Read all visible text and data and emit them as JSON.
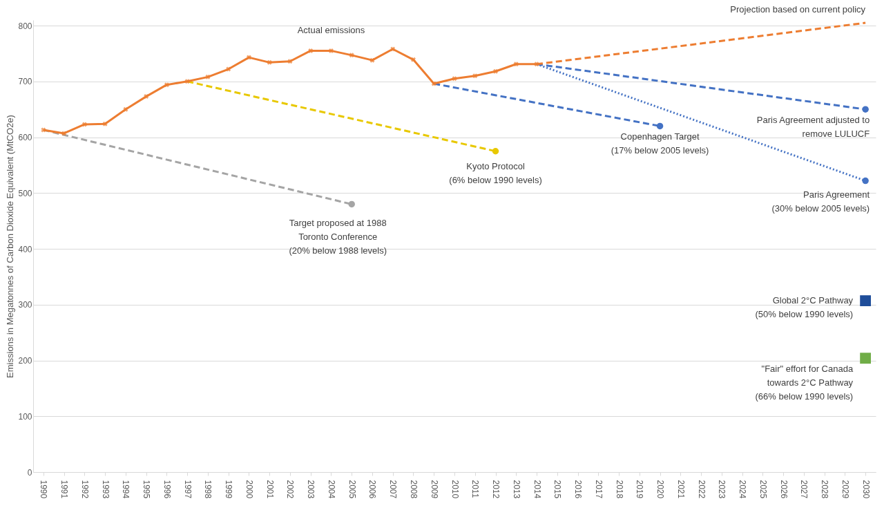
{
  "chart_data": {
    "type": "line",
    "ylabel": "Emissions in Megatonnes of Carbon Dioxide Equivalent (MtCO2e)",
    "xlim": [
      1989.5,
      2030.5
    ],
    "xticks": [
      1990,
      1991,
      1992,
      1993,
      1994,
      1995,
      1996,
      1997,
      1998,
      1999,
      2000,
      2001,
      2002,
      2003,
      2004,
      2005,
      2006,
      2007,
      2008,
      2009,
      2010,
      2011,
      2012,
      2013,
      2014,
      2015,
      2016,
      2017,
      2018,
      2019,
      2020,
      2021,
      2022,
      2023,
      2024,
      2025,
      2026,
      2027,
      2028,
      2029,
      2030
    ],
    "ylim": [
      0,
      810
    ],
    "yticks": [
      0,
      100,
      200,
      300,
      400,
      500,
      600,
      700,
      800
    ],
    "grid": "y",
    "series": [
      {
        "color": "#a5a5a5",
        "line_style": "dashed",
        "x": [
          1990,
          2005
        ],
        "values": [
          613,
          480
        ]
      },
      {
        "color": "#e8c800",
        "line_style": "dashed",
        "x": [
          1997,
          2012
        ],
        "values": [
          700,
          575
        ]
      },
      {
        "color": "#4472c4",
        "line_style": "dashed",
        "x": [
          2009,
          2020
        ],
        "values": [
          696,
          620
        ]
      },
      {
        "color": "#4472c4",
        "line_style": "dashed",
        "x": [
          2014,
          2030
        ],
        "values": [
          731,
          650
        ]
      },
      {
        "color": "#4472c4",
        "line_style": "dotted",
        "x": [
          2014,
          2030
        ],
        "values": [
          731,
          522
        ]
      },
      {
        "color": "#ed7d31",
        "line_style": "dashed",
        "x": [
          2014,
          2030
        ],
        "values": [
          731,
          805
        ]
      },
      {
        "color": "#ed7d31",
        "line_style": "solid",
        "marker": "cross",
        "x": [
          1990,
          1991,
          1992,
          1993,
          1994,
          1995,
          1996,
          1997,
          1998,
          1999,
          2000,
          2001,
          2002,
          2003,
          2004,
          2005,
          2006,
          2007,
          2008,
          2009,
          2010,
          2011,
          2012,
          2013,
          2014
        ],
        "values": [
          613,
          607,
          623,
          624,
          650,
          673,
          694,
          700,
          708,
          722,
          743,
          734,
          736,
          755,
          755,
          747,
          738,
          758,
          739,
          696,
          705,
          710,
          718,
          731,
          731
        ]
      },
      {
        "type": "scatter",
        "marker": "circle",
        "x": [
          2005,
          2012,
          2020,
          2030,
          2030
        ],
        "values": [
          480,
          575,
          620,
          650,
          522
        ],
        "colors": [
          "#a5a5a5",
          "#e8c800",
          "#4472c4",
          "#4472c4",
          "#4472c4"
        ]
      },
      {
        "type": "scatter",
        "marker": "square",
        "color": "#1f4e9a",
        "x": [
          2030
        ],
        "values": [
          307
        ]
      },
      {
        "type": "scatter",
        "marker": "square",
        "color": "#70ad47",
        "x": [
          2030
        ],
        "values": [
          204
        ]
      }
    ],
    "annotations": [
      {
        "text": "Actual emissions",
        "x": 2004,
        "y": 755
      },
      {
        "text": "Projection based on current policy",
        "x": 2030,
        "y": 805
      },
      {
        "text": "Target proposed at 1988\nToronto Conference\n(20% below 1988 levels)",
        "x": 2005,
        "y": 480
      },
      {
        "text": "Kyoto Protocol\n(6% below 1990 levels)",
        "x": 2012,
        "y": 575
      },
      {
        "text": "Copenhagen Target\n(17% below 2005 levels)",
        "x": 2020,
        "y": 620
      },
      {
        "text": "Paris Agreement adjusted to\nremove LULUCF",
        "x": 2030,
        "y": 650
      },
      {
        "text": "Paris Agreement\n(30% below 2005 levels)",
        "x": 2030,
        "y": 522
      },
      {
        "text": "Global 2°C Pathway\n(50% below 1990 levels)",
        "x": 2030,
        "y": 307
      },
      {
        "text": "\"Fair\" effort for Canada\ntowards 2°C Pathway\n(66% below 1990 levels)",
        "x": 2030,
        "y": 204
      }
    ]
  }
}
